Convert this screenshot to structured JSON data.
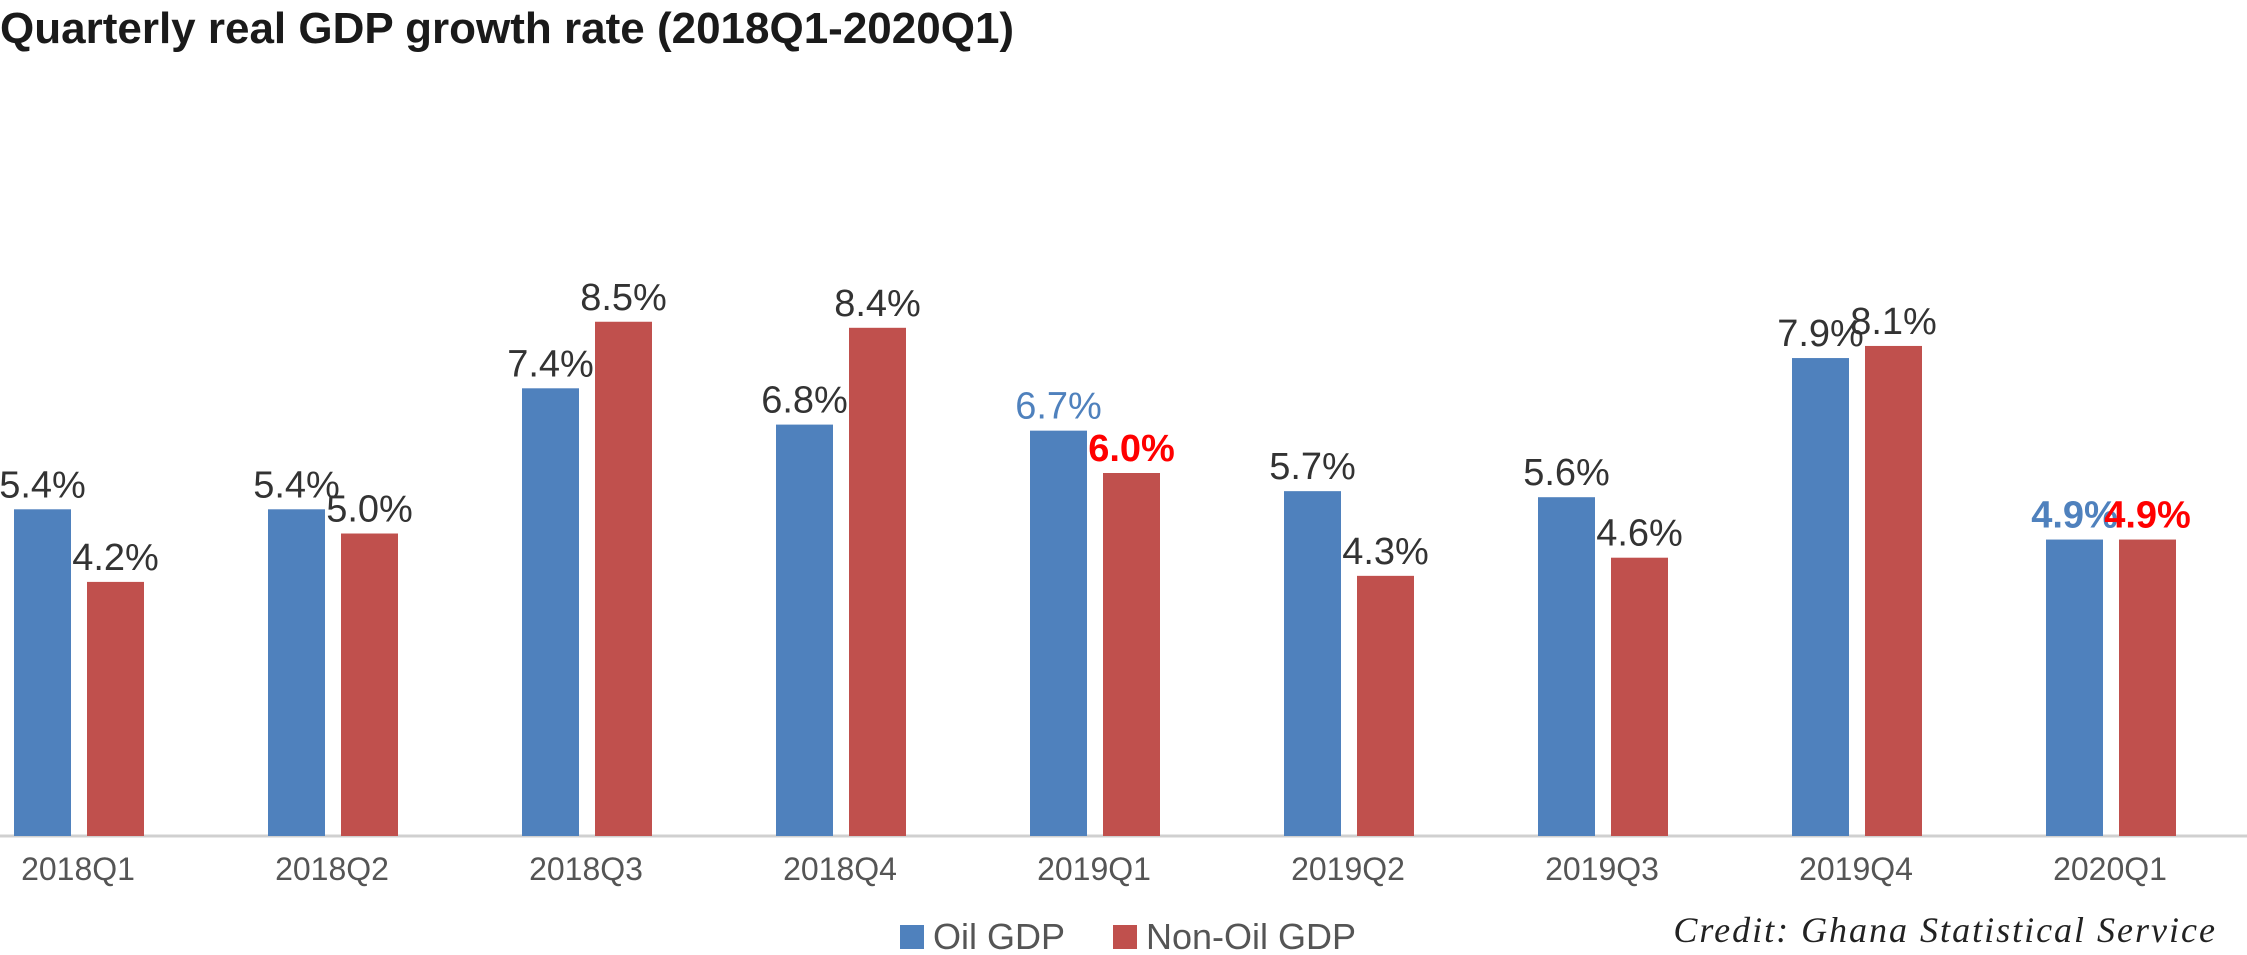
{
  "chart_data": {
    "type": "bar",
    "title": "Quarterly real GDP growth rate (2018Q1-2020Q1)",
    "categories": [
      "2018Q1",
      "2018Q2",
      "2018Q3",
      "2018Q4",
      "2019Q1",
      "2019Q2",
      "2019Q3",
      "2019Q4",
      "2020Q1"
    ],
    "series": [
      {
        "name": "Oil GDP",
        "color": "#4F81BD",
        "values": [
          5.4,
          5.4,
          7.4,
          6.8,
          6.7,
          5.7,
          5.6,
          7.9,
          4.9
        ],
        "labels": [
          "5.4%",
          "5.4%",
          "7.4%",
          "6.8%",
          "6.7%",
          "5.7%",
          "5.6%",
          "7.9%",
          "4.9%"
        ],
        "label_colors": [
          "#333333",
          "#333333",
          "#333333",
          "#333333",
          "#4F81BD",
          "#333333",
          "#333333",
          "#333333",
          "#4F81BD"
        ]
      },
      {
        "name": "Non-Oil GDP",
        "color": "#C0504D",
        "values": [
          4.2,
          5.0,
          8.5,
          8.4,
          6.0,
          4.3,
          4.6,
          8.1,
          4.9
        ],
        "labels": [
          "4.2%",
          "5.0%",
          "8.5%",
          "8.4%",
          "6.0%",
          "4.3%",
          "4.6%",
          "8.1%",
          "4.9%"
        ],
        "label_colors": [
          "#333333",
          "#333333",
          "#333333",
          "#333333",
          "#FF0000",
          "#333333",
          "#333333",
          "#333333",
          "#FF0000"
        ]
      }
    ],
    "ylim": [
      0,
      9
    ],
    "legend_position": "bottom-center",
    "grid": false
  },
  "credit": "Credit: Ghana Statistical Service"
}
